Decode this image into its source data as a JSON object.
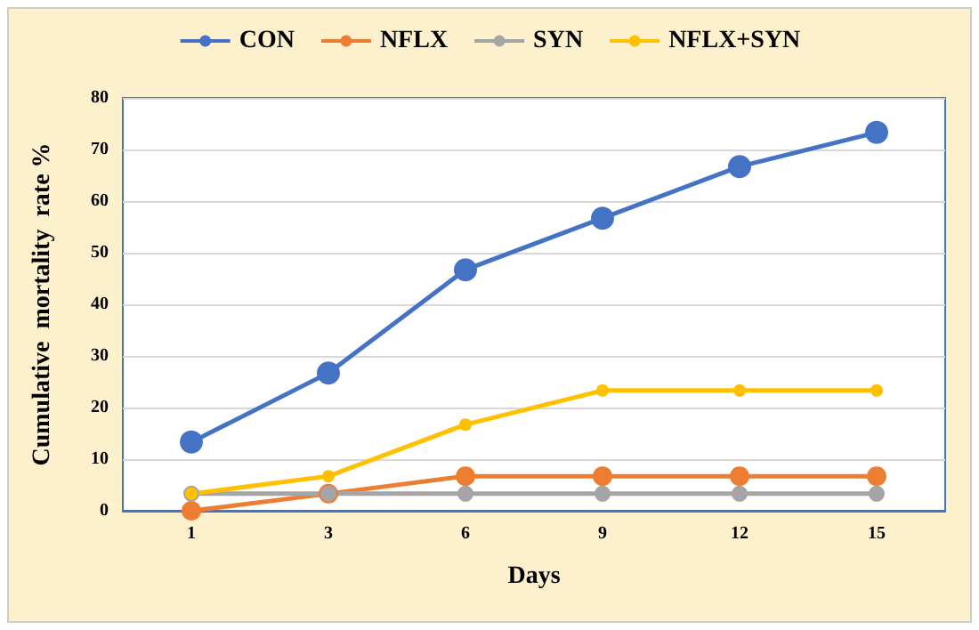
{
  "chart_data": {
    "type": "line",
    "xlabel": "Days",
    "ylabel": "Cumulative  mortality  rate %",
    "categories": [
      "1",
      "3",
      "6",
      "9",
      "12",
      "15"
    ],
    "series": [
      {
        "name": "CON",
        "color": "#4472c4",
        "values": [
          13.3,
          26.7,
          46.7,
          56.7,
          66.7,
          73.3
        ]
      },
      {
        "name": "NFLX",
        "color": "#ed7d31",
        "values": [
          0,
          3.3,
          6.7,
          6.7,
          6.7,
          6.7
        ]
      },
      {
        "name": "SYN",
        "color": "#a5a5a5",
        "values": [
          3.3,
          3.3,
          3.3,
          3.3,
          3.3,
          3.3
        ]
      },
      {
        "name": "NFLX+SYN",
        "color": "#ffc000",
        "values": [
          3.3,
          6.7,
          16.7,
          23.3,
          23.3,
          23.3
        ]
      }
    ],
    "ylim": [
      0,
      80
    ],
    "yticks": [
      0,
      10,
      20,
      30,
      40,
      50,
      60,
      70,
      80
    ],
    "grid": "y",
    "legend": "top",
    "marker": "circle",
    "line_style": "solid"
  }
}
